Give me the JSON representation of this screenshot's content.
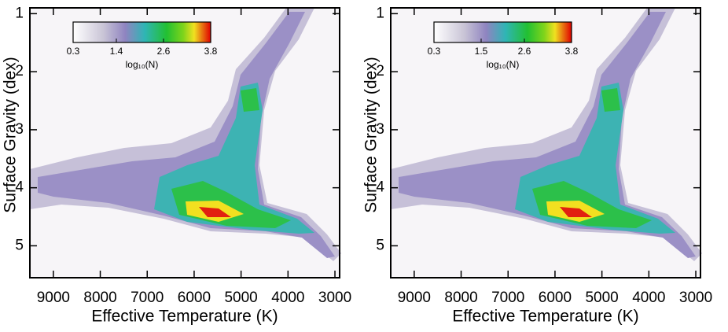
{
  "chart_data": [
    {
      "type": "heatmap",
      "xlabel": "Effective Temperature (K)",
      "ylabel": "Surface Gravity (dex)",
      "xlim": [
        9500,
        2900
      ],
      "xticks": [
        9000,
        8000,
        7000,
        6000,
        5000,
        4000,
        3000
      ],
      "ylim": [
        0.9,
        5.55
      ],
      "yticks": [
        1,
        2,
        3,
        4,
        5
      ],
      "colorbar": {
        "label": "log₁₀(N)",
        "lim": [
          0.3,
          3.8
        ],
        "ticks": [
          0.3,
          1.4,
          2.6,
          3.8
        ]
      }
    },
    {
      "type": "heatmap",
      "xlabel": "Effective Temperature (K)",
      "ylabel": "Surface Gravity (dex)",
      "xlim": [
        9500,
        2900
      ],
      "xticks": [
        9000,
        8000,
        7000,
        6000,
        5000,
        4000,
        3000
      ],
      "ylim": [
        0.9,
        5.55
      ],
      "yticks": [
        1,
        2,
        3,
        4,
        5
      ],
      "colorbar": {
        "label": "log₁₀(N)",
        "lim": [
          0.3,
          3.8
        ],
        "ticks": [
          0.3,
          1.5,
          2.6,
          3.8
        ]
      }
    }
  ]
}
